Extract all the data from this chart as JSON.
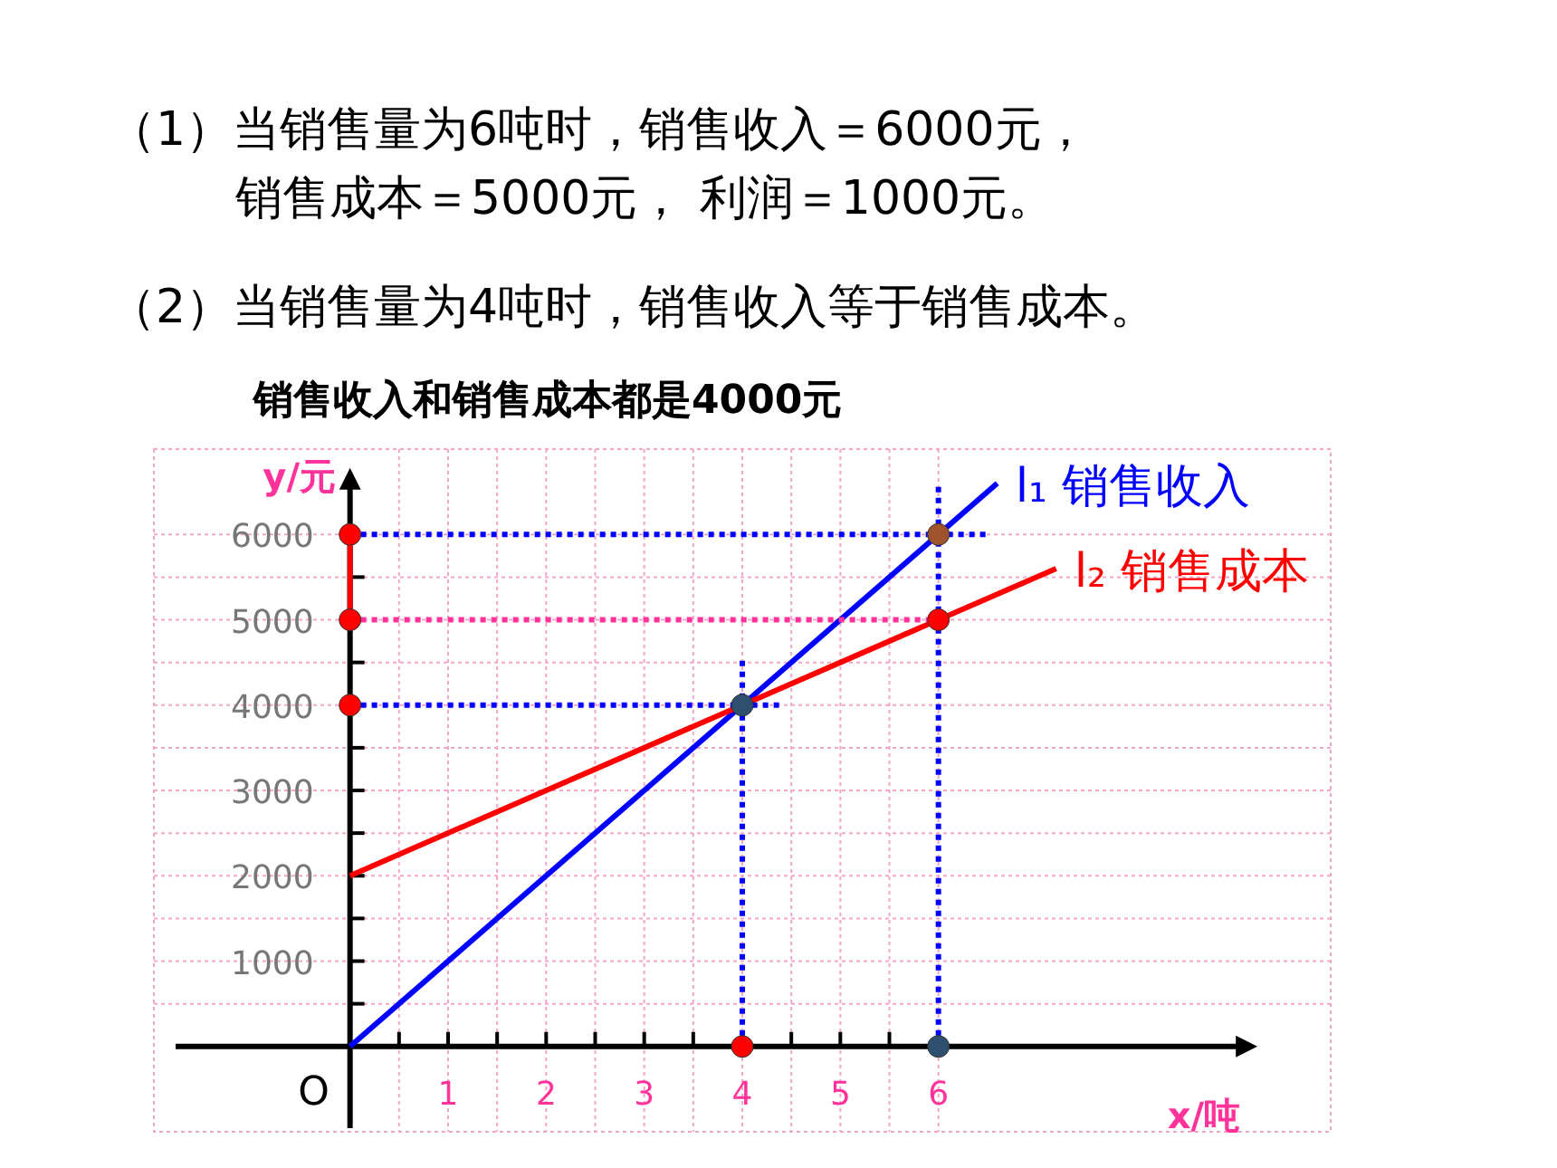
{
  "chart_data": {
    "type": "line",
    "annotations": [
      "（1）当销售量为6吨时，销售收入＝6000元，",
      "销售成本＝5000元， 利润＝1000元。",
      "（2）当销售量为4吨时，销售收入等于销售成本。",
      "销售收入和销售成本都是4000元",
      {
        "text": "O",
        "x": 0,
        "y": 0
      }
    ],
    "xlabel": "x/吨",
    "ylabel": "y/元",
    "xlim": [
      -2,
      10
    ],
    "ylim": [
      -1000,
      7000
    ],
    "xticks": [
      {
        "value": 0.5,
        "label": null
      },
      1,
      {
        "value": 1.5,
        "label": null
      },
      2,
      {
        "value": 2.5,
        "label": null
      },
      3,
      {
        "value": 3.5,
        "label": null
      },
      4,
      {
        "value": 4.5,
        "label": null
      },
      5,
      {
        "value": 5.5,
        "label": null
      },
      6
    ],
    "yticks": [
      {
        "value": 500,
        "label": null
      },
      1000,
      {
        "value": 1500,
        "label": null
      },
      2000,
      {
        "value": 2500,
        "label": null
      },
      3000,
      {
        "value": 3500,
        "label": null
      },
      4000,
      {
        "value": 4500,
        "label": null
      },
      5000,
      {
        "value": 5500,
        "label": null
      },
      6000
    ],
    "grid": true,
    "marker": "none",
    "series": [
      {
        "name": "l₁ 销售收入",
        "color": "#0000ff",
        "x": [
          0,
          6.6
        ],
        "values": [
          0,
          6600
        ]
      },
      {
        "name": "l₂ 销售成本",
        "color": "#ff0000",
        "x": [
          0,
          7.2
        ],
        "values": [
          2000,
          5600
        ]
      },
      {
        "color": "#0000ff",
        "line_style": "dotted",
        "x": [
          0,
          6.5
        ],
        "values": [
          6000,
          6000
        ]
      },
      {
        "color": "#ff3399",
        "line_style": "dotted",
        "x": [
          0,
          6
        ],
        "values": [
          5000,
          5000
        ]
      },
      {
        "color": "#0000ff",
        "line_style": "dotted",
        "x": [
          0,
          4.4
        ],
        "values": [
          4000,
          4000
        ]
      },
      {
        "color": "#0000ff",
        "line_style": "dotted",
        "x": [
          4,
          4
        ],
        "values": [
          0,
          4550
        ]
      },
      {
        "color": "#0000ff",
        "line_style": "dotted",
        "x": [
          6,
          6
        ],
        "values": [
          0,
          6600
        ]
      },
      {
        "color": "#ff0000",
        "x": [
          0,
          0
        ],
        "values": [
          5000,
          6000
        ]
      },
      {
        "type": "scatter",
        "marker": "circle",
        "x": [
          0,
          0,
          0,
          4,
          6,
          6,
          4,
          6
        ],
        "values": [
          6000,
          5000,
          4000,
          4000,
          6000,
          5000,
          0,
          0
        ],
        "colors": [
          "#ff0000",
          "#ff0000",
          "#ff0000",
          "#2f4f6f",
          "#a0522d",
          "#ff0000",
          "#ff0000",
          "#2f4f6f"
        ]
      }
    ]
  }
}
